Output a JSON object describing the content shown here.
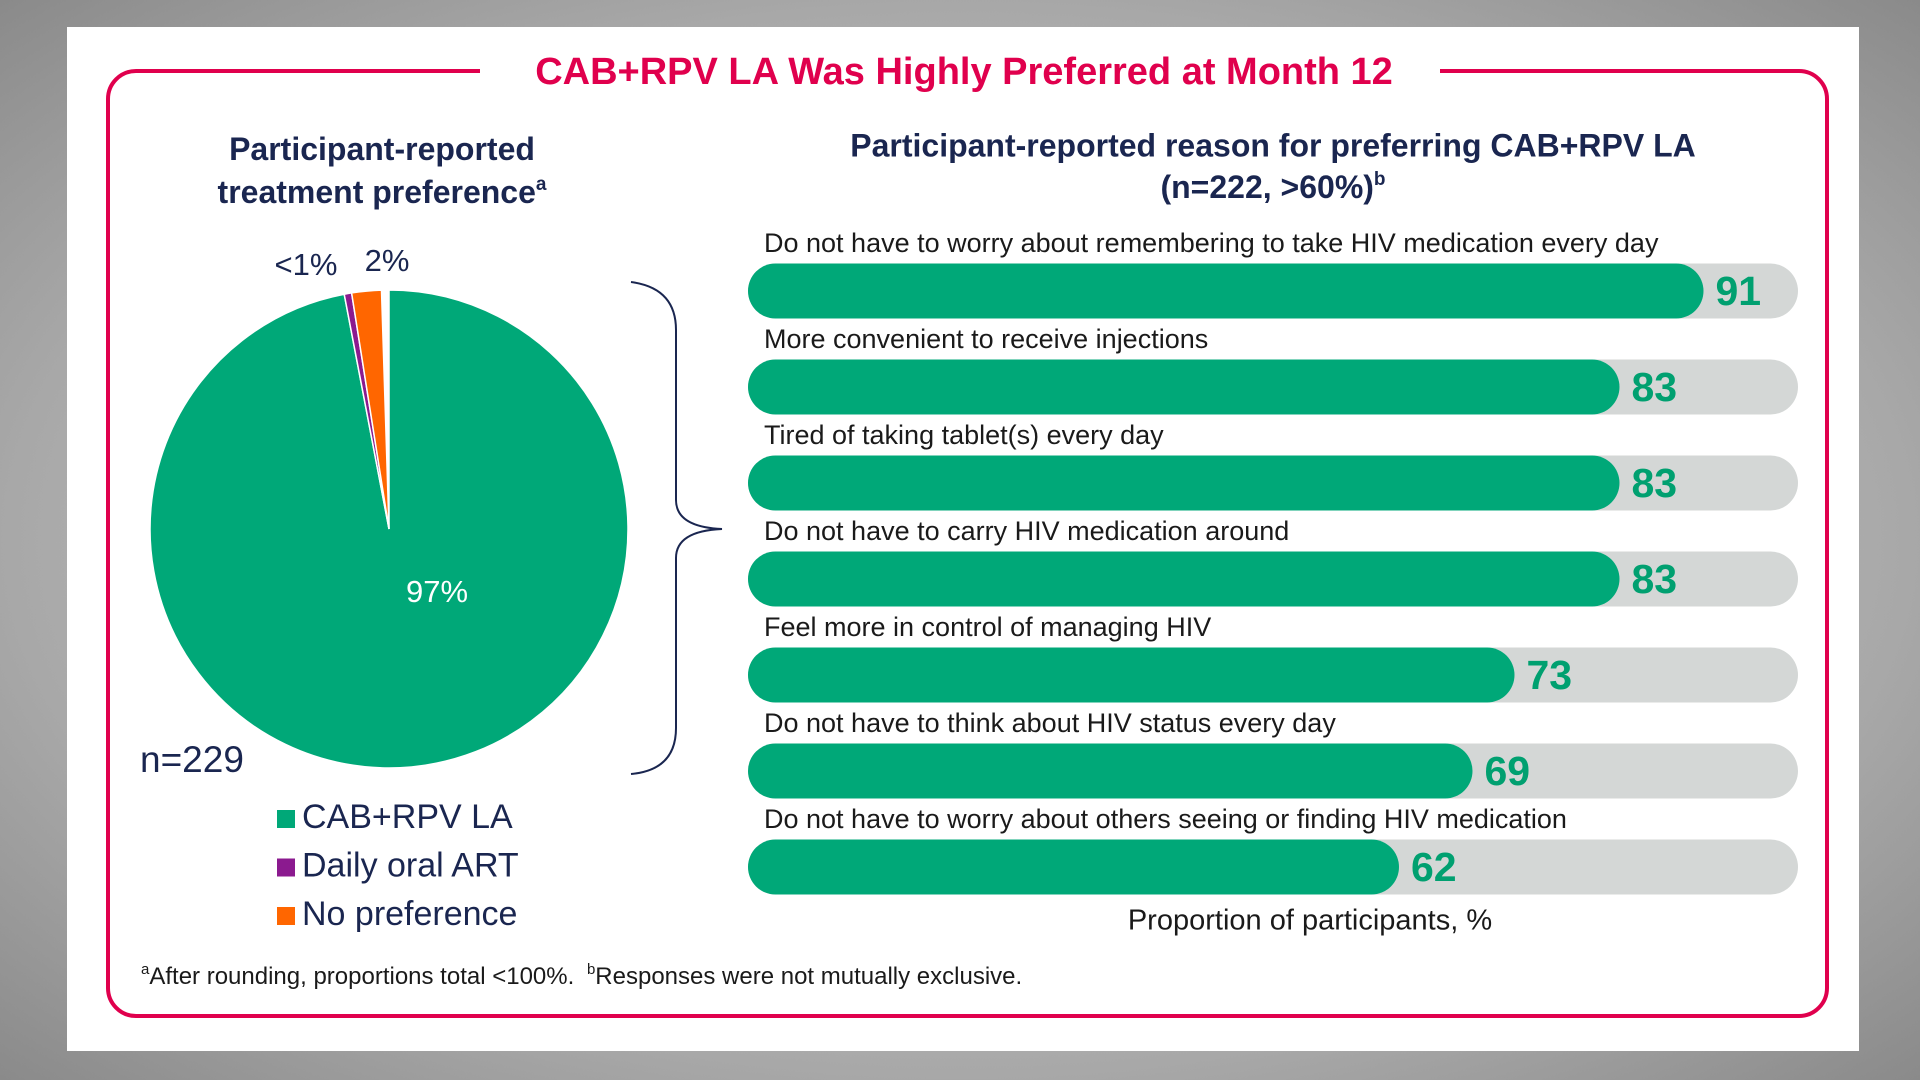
{
  "title": "CAB+RPV LA Was Highly Preferred at Month 12",
  "chart_data": [
    {
      "type": "pie",
      "title_lines": [
        "Participant-reported",
        "treatment preference"
      ],
      "title_sup": "a",
      "note": "n=229",
      "categories": [
        "CAB+RPV LA",
        "Daily oral ART",
        "No preference"
      ],
      "values": [
        97,
        0.5,
        2
      ],
      "value_labels": [
        "97%",
        "<1%",
        "2%"
      ],
      "colors": [
        "#00a878",
        "#8b1a8f",
        "#ff6600"
      ]
    },
    {
      "type": "bar",
      "title": "Participant-reported reason for preferring CAB+RPV LA",
      "subtitle": "(n=222, >60%)",
      "subtitle_sup": "b",
      "categories": [
        "Do not have to worry about remembering to take HIV medication every day",
        "More convenient to receive injections",
        "Tired of taking tablet(s) every day",
        "Do not have to carry HIV medication around",
        "Feel more in control of managing HIV",
        "Do not have to think about HIV status every day",
        "Do not have to worry about others seeing or finding HIV medication"
      ],
      "values": [
        91,
        83,
        83,
        83,
        73,
        69,
        62
      ],
      "xlim": [
        0,
        100
      ],
      "xlabel": "Proportion of participants, %",
      "color": "#00a878",
      "track_color": "#d4d7d6",
      "label_color": "#00a070"
    }
  ],
  "footnotes": [
    {
      "sup": "a",
      "text": "After  rounding, proportions total <100%."
    },
    {
      "sup": "b",
      "text": "Responses were not mutually exclusive."
    }
  ]
}
